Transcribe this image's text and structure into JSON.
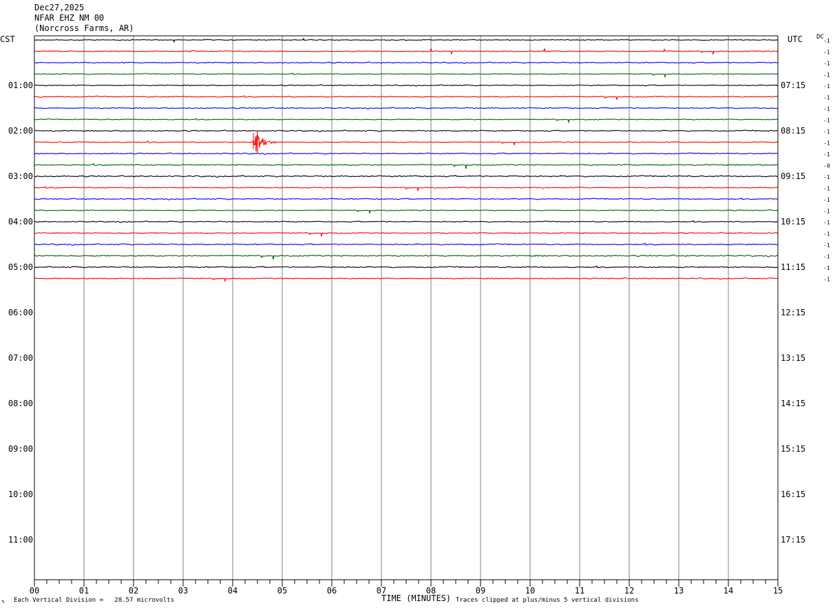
{
  "header": {
    "date": "Dec27,2025",
    "station": "NFAR EHZ NM 00",
    "location": "(Norcross Farms, AR)"
  },
  "left_tz_label": "CST",
  "right_tz_label": "UTC",
  "dc_label": "DC",
  "footer": {
    "corner_mark": "↖",
    "scale_note": "Each Vertical Division =   28.57 microvolts",
    "xaxis_title": "TIME (MINUTES)",
    "clip_note": "Traces clipped at plus/minus 5 vertical divisions"
  },
  "colors": {
    "trace_cycle": [
      "#000000",
      "#ff0000",
      "#0000ff",
      "#006400"
    ],
    "grid": "#808080"
  },
  "chart_data": {
    "type": "line",
    "title": "NFAR EHZ NM 00",
    "xlabel": "TIME (MINUTES)",
    "x_ticks": [
      "00",
      "01",
      "02",
      "03",
      "04",
      "05",
      "06",
      "07",
      "08",
      "09",
      "10",
      "11",
      "12",
      "13",
      "14",
      "15"
    ],
    "xlim": [
      0,
      15
    ],
    "minor_ticks_per_minute": 4,
    "left_hour_labels": [
      "01:00",
      "02:00",
      "03:00",
      "04:00",
      "05:00",
      "06:00",
      "07:00",
      "08:00",
      "09:00",
      "10:00",
      "11:00"
    ],
    "right_hour_labels": [
      "07:15",
      "08:15",
      "09:15",
      "10:15",
      "11:15",
      "12:15",
      "13:15",
      "14:15",
      "15:15",
      "16:15",
      "17:15"
    ],
    "total_rows": 48,
    "rows_per_hour": 4,
    "grid": true,
    "traces_shown": 22,
    "trace_dc_offsets": [
      "-1",
      "-1",
      "-1",
      "-1",
      "-1",
      "-1",
      "-1",
      "-1",
      "-1",
      "-1",
      "-1",
      "-0",
      "-1",
      "-1",
      "-1",
      "-1",
      "-1",
      "-1",
      "-1",
      "-1",
      "-1",
      "-1"
    ],
    "trace_amplitudes": [
      0.35,
      0.45,
      0.45,
      0.4,
      0.4,
      0.45,
      0.45,
      0.4,
      0.45,
      0.45,
      0.45,
      0.55,
      0.55,
      0.45,
      0.45,
      0.4,
      0.45,
      0.5,
      0.5,
      0.55,
      0.5,
      0.45
    ],
    "event": {
      "trace_index": 9,
      "start_min": 4.4,
      "end_min": 5.0,
      "peak_minute": 4.5,
      "peak_amplitude_divisions": 5
    },
    "scale_microvolts_per_division": 28.57,
    "clip_divisions": 5
  }
}
